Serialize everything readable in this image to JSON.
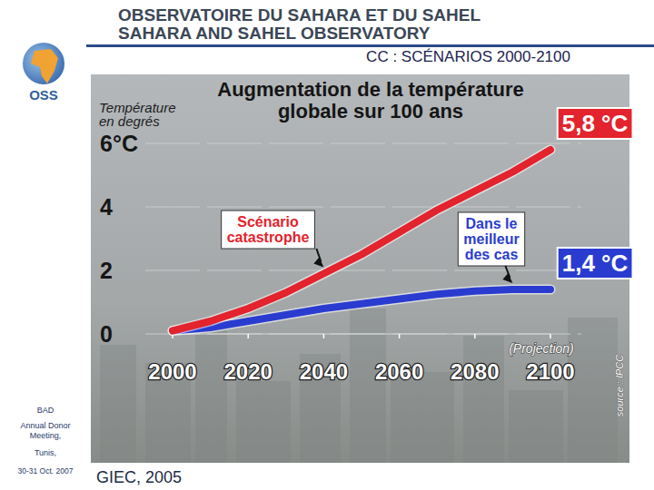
{
  "slide": {
    "header_fr": "OBSERVATOIRE DU SAHARA ET DU SAHEL",
    "header_en": "SAHARA AND SAHEL OBSERVATORY",
    "heading": "CC : SCÉNARIOS 2000-2100",
    "logo": "OSS",
    "sidebar": [
      "BAD",
      "Annual Donor Meeting,",
      "Tunis,",
      "30-31 Oct. 2007"
    ],
    "citation": "GIEC, 2005"
  },
  "chart_data": {
    "type": "line",
    "title": "Augmentation de la température globale sur 100 ans",
    "y_label": "Température en degrés",
    "x": [
      2000,
      2010,
      2020,
      2030,
      2040,
      2050,
      2060,
      2070,
      2080,
      2090,
      2100
    ],
    "xlim": [
      2000,
      2100
    ],
    "xticks": [
      2000,
      2020,
      2040,
      2060,
      2080,
      2100
    ],
    "ylim": [
      0,
      6
    ],
    "yticks": [
      0,
      2,
      4,
      {
        "value": 6,
        "label": "6°C"
      }
    ],
    "grid": true,
    "series": [
      {
        "name": "Scénario catastrophe",
        "color": "#e3232d",
        "values": [
          0.1,
          0.4,
          0.8,
          1.3,
          1.9,
          2.5,
          3.2,
          3.9,
          4.5,
          5.1,
          5.8
        ],
        "value_labels": [
          null,
          null,
          null,
          null,
          null,
          null,
          null,
          null,
          null,
          null,
          "5,8 °C"
        ]
      },
      {
        "name": "Dans le meilleur des cas",
        "color": "#2a3cd0",
        "values": [
          0.1,
          0.2,
          0.4,
          0.6,
          0.8,
          0.95,
          1.1,
          1.25,
          1.35,
          1.4,
          1.4
        ],
        "value_labels": [
          null,
          null,
          null,
          null,
          null,
          null,
          null,
          null,
          null,
          null,
          "1,4 °C"
        ]
      }
    ],
    "annotations": [
      "(Projection)",
      "source : IPCC"
    ]
  }
}
